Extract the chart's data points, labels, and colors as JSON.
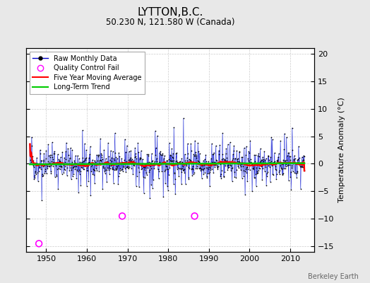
{
  "title": "LYTTON,B.C.",
  "subtitle": "50.230 N, 121.580 W (Canada)",
  "ylabel": "Temperature Anomaly (°C)",
  "watermark": "Berkeley Earth",
  "ylim": [
    -16,
    21
  ],
  "yticks": [
    -15,
    -10,
    -5,
    0,
    5,
    10,
    15,
    20
  ],
  "xlim": [
    1945,
    2016
  ],
  "xticks": [
    1950,
    1960,
    1970,
    1980,
    1990,
    2000,
    2010
  ],
  "bg_color": "#e8e8e8",
  "plot_bg_color": "#ffffff",
  "seed": 42,
  "n_months": 816,
  "start_year": 1946.0,
  "qc_fail_years": [
    1948.2,
    1968.7,
    1986.5
  ],
  "qc_fail_values": [
    -14.5,
    -9.5,
    -9.5
  ],
  "stem_color": "#6688ee",
  "line_color": "#0000cc",
  "dot_color": "#000000",
  "ma_color": "#ff0000",
  "trend_color": "#00cc00"
}
